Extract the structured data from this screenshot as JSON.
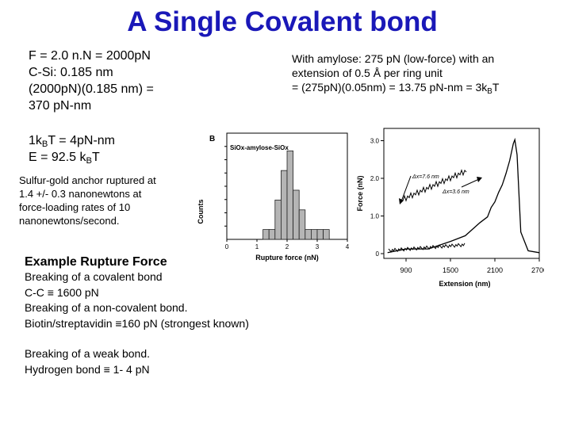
{
  "title": "A Single Covalent bond",
  "left_block": {
    "line1": "F = 2.0 n.N = 2000pN",
    "line2": "C-Si: 0.185 nm",
    "line3": "(2000pN)(0.185 nm) =",
    "line4": "370 pN-nm"
  },
  "right_block": {
    "line1": "With amylose: 275 pN (low-force) with an",
    "line2": "extension of 0.5 Å per ring unit",
    "line3_pre": "= (275pN)(0.05nm) = 13.75 pN-nm = 3k",
    "line3_sub": "B",
    "line3_post": "T"
  },
  "kbt_block": {
    "line1_pre": "1k",
    "line1_sub": "B",
    "line1_post": "T = 4pN-nm",
    "line2_pre": "E = 92.5 k",
    "line2_sub": "B",
    "line2_post": "T"
  },
  "anchor_note": {
    "line1": "Sulfur-gold anchor ruptured at",
    "line2": "1.4 +/- 0.3 nanonewtons at",
    "line3": "force-loading rates of 10",
    "line4": "nanonewtons/second."
  },
  "rupture": {
    "heading": "Example Rupture Force",
    "lines": [
      "Breaking of a covalent bond",
      "C-C ≡ 1600 pN",
      "Breaking of a non-covalent bond.",
      "Biotin/streptavidin   ≡160 pN (strongest known)"
    ],
    "weak_lines": [
      "Breaking of a weak bond.",
      "Hydrogen bond ≡ 1- 4 pN"
    ]
  },
  "chart_data": [
    {
      "type": "bar",
      "panel_label": "B",
      "title": "SiOx-amylose-SiOx",
      "xlabel": "Rupture force (nN)",
      "ylabel": "Counts",
      "xlim": [
        0,
        4
      ],
      "xticks": [
        "0",
        "1",
        "2",
        "3",
        "4"
      ],
      "bin_width": 0.2,
      "bin_starts": [
        1.2,
        1.4,
        1.6,
        1.8,
        2.0,
        2.2,
        2.4,
        2.6,
        2.8,
        3.0,
        3.2
      ],
      "values": [
        1,
        1,
        4,
        7,
        9,
        5,
        3,
        1,
        1,
        1,
        1
      ],
      "grid": false
    },
    {
      "type": "line",
      "ylabel": "Force (nN)",
      "xlabel": "Extension (nm)",
      "xticks": [
        "900",
        "1500",
        "2100",
        "2700"
      ],
      "yticks": [
        "3.0",
        "2.0",
        "1.0",
        "0"
      ],
      "xlim": [
        600,
        2700
      ],
      "ylim": [
        0,
        3.2
      ],
      "annotations": [
        "Δx=7.6 nm",
        "Δx=3.6 nm"
      ],
      "x": [
        650,
        900,
        1200,
        1500,
        1700,
        1900,
        2000,
        2050,
        2100,
        2150,
        2200,
        2250,
        2300,
        2350,
        2370,
        2400,
        2450,
        2550,
        2700
      ],
      "y": [
        0.05,
        0.1,
        0.15,
        0.3,
        0.5,
        0.8,
        1.0,
        1.2,
        1.4,
        1.6,
        1.85,
        2.1,
        2.5,
        2.9,
        3.05,
        2.6,
        0.6,
        0.05,
        0.05
      ],
      "grid": false
    }
  ]
}
